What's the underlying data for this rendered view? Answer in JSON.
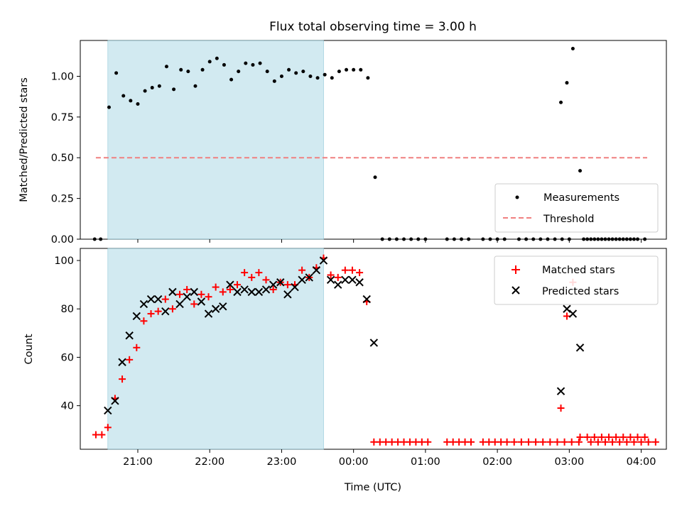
{
  "figure": {
    "title": "Flux total observing time = 3.00 h"
  },
  "chart_data": [
    {
      "type": "scatter",
      "ylabel": "Matched/Predicted stars",
      "xlabel": "",
      "x_is_time_hours": true,
      "xlim": [
        "20:12",
        "04:21"
      ],
      "ylim": [
        0,
        1.22
      ],
      "yticks": [
        0.0,
        0.25,
        0.5,
        0.75,
        1.0
      ],
      "ytick_labels": [
        "0.00",
        "0.25",
        "0.50",
        "0.75",
        "1.00"
      ],
      "shaded_span": [
        "20:35",
        "23:35"
      ],
      "shaded_color": "#add8e6",
      "legend": {
        "placement": "lower-right",
        "entries": [
          "Measurements",
          "Threshold"
        ]
      },
      "series": [
        {
          "name": "Measurements",
          "marker": "dot",
          "color": "#000000",
          "points": [
            [
              "20:24",
              0.0
            ],
            [
              "20:29",
              0.0
            ],
            [
              "20:36",
              0.81
            ],
            [
              "20:42",
              1.02
            ],
            [
              "20:48",
              0.88
            ],
            [
              "20:54",
              0.85
            ],
            [
              "21:00",
              0.83
            ],
            [
              "21:06",
              0.91
            ],
            [
              "21:12",
              0.93
            ],
            [
              "21:18",
              0.94
            ],
            [
              "21:24",
              1.06
            ],
            [
              "21:30",
              0.92
            ],
            [
              "21:36",
              1.04
            ],
            [
              "21:42",
              1.03
            ],
            [
              "21:48",
              0.94
            ],
            [
              "21:54",
              1.04
            ],
            [
              "22:00",
              1.09
            ],
            [
              "22:06",
              1.11
            ],
            [
              "22:12",
              1.07
            ],
            [
              "22:18",
              0.98
            ],
            [
              "22:24",
              1.03
            ],
            [
              "22:30",
              1.08
            ],
            [
              "22:36",
              1.07
            ],
            [
              "22:42",
              1.08
            ],
            [
              "22:48",
              1.03
            ],
            [
              "22:54",
              0.97
            ],
            [
              "23:00",
              1.0
            ],
            [
              "23:06",
              1.04
            ],
            [
              "23:12",
              1.02
            ],
            [
              "23:18",
              1.03
            ],
            [
              "23:24",
              1.0
            ],
            [
              "23:30",
              0.99
            ],
            [
              "23:36",
              1.01
            ],
            [
              "23:42",
              0.99
            ],
            [
              "23:48",
              1.03
            ],
            [
              "23:54",
              1.04
            ],
            [
              "00:00",
              1.04
            ],
            [
              "00:06",
              1.04
            ],
            [
              "00:12",
              0.99
            ],
            [
              "00:18",
              0.38
            ],
            [
              "00:24",
              0.0
            ],
            [
              "00:30",
              0.0
            ],
            [
              "00:36",
              0.0
            ],
            [
              "00:42",
              0.0
            ],
            [
              "00:48",
              0.0
            ],
            [
              "00:54",
              0.0
            ],
            [
              "01:00",
              0.0
            ],
            [
              "01:18",
              0.0
            ],
            [
              "01:24",
              0.0
            ],
            [
              "01:30",
              0.0
            ],
            [
              "01:36",
              0.0
            ],
            [
              "01:48",
              0.0
            ],
            [
              "01:54",
              0.0
            ],
            [
              "02:00",
              0.0
            ],
            [
              "02:06",
              0.0
            ],
            [
              "02:18",
              0.0
            ],
            [
              "02:24",
              0.0
            ],
            [
              "02:30",
              0.0
            ],
            [
              "02:36",
              0.0
            ],
            [
              "02:42",
              0.0
            ],
            [
              "02:48",
              0.0
            ],
            [
              "02:54",
              0.0
            ],
            [
              "03:00",
              0.0
            ],
            [
              "03:12",
              0.0
            ],
            [
              "03:18",
              0.0
            ],
            [
              "03:24",
              0.0
            ],
            [
              "03:30",
              0.0
            ],
            [
              "03:36",
              0.0
            ],
            [
              "03:42",
              0.0
            ],
            [
              "03:48",
              0.0
            ],
            [
              "03:54",
              0.0
            ],
            [
              "02:53",
              0.84
            ],
            [
              "02:58",
              0.96
            ],
            [
              "03:03",
              1.17
            ],
            [
              "03:09",
              0.42
            ],
            [
              "03:15",
              0.0
            ],
            [
              "03:21",
              0.0
            ],
            [
              "03:27",
              0.0
            ],
            [
              "03:33",
              0.0
            ],
            [
              "03:39",
              0.0
            ],
            [
              "03:45",
              0.0
            ],
            [
              "03:51",
              0.0
            ],
            [
              "03:57",
              0.0
            ],
            [
              "04:03",
              0.0
            ]
          ]
        },
        {
          "name": "Threshold",
          "line_style": "dashed",
          "color": "#f08080",
          "x": [
            "20:25",
            "04:05"
          ],
          "y": [
            0.5,
            0.5
          ]
        }
      ]
    },
    {
      "type": "scatter",
      "ylabel": "Count",
      "xlabel": "Time (UTC)",
      "xlim": [
        "20:12",
        "04:21"
      ],
      "xticks": [
        "21:00",
        "22:00",
        "23:00",
        "00:00",
        "01:00",
        "02:00",
        "03:00",
        "04:00"
      ],
      "ylim": [
        22,
        105
      ],
      "yticks": [
        40,
        60,
        80,
        100
      ],
      "ytick_labels": [
        "40",
        "60",
        "80",
        "100"
      ],
      "shaded_span": [
        "20:35",
        "23:35"
      ],
      "shaded_color": "#add8e6",
      "legend": {
        "placement": "top-right",
        "entries": [
          "Matched stars",
          "Predicted stars"
        ]
      },
      "series": [
        {
          "name": "Matched stars",
          "marker": "plus",
          "color": "#ff0000",
          "points": [
            [
              "20:25",
              28
            ],
            [
              "20:30",
              28
            ],
            [
              "20:35",
              31
            ],
            [
              "20:41",
              43
            ],
            [
              "20:47",
              51
            ],
            [
              "20:53",
              59
            ],
            [
              "20:59",
              64
            ],
            [
              "21:05",
              75
            ],
            [
              "21:11",
              78
            ],
            [
              "21:17",
              79
            ],
            [
              "21:23",
              84
            ],
            [
              "21:29",
              80
            ],
            [
              "21:35",
              86
            ],
            [
              "21:41",
              88
            ],
            [
              "21:47",
              82
            ],
            [
              "21:53",
              86
            ],
            [
              "21:59",
              85
            ],
            [
              "22:05",
              89
            ],
            [
              "22:11",
              87
            ],
            [
              "22:17",
              88
            ],
            [
              "22:23",
              90
            ],
            [
              "22:29",
              95
            ],
            [
              "22:35",
              93
            ],
            [
              "22:41",
              95
            ],
            [
              "22:47",
              92
            ],
            [
              "22:53",
              88
            ],
            [
              "22:59",
              91
            ],
            [
              "23:05",
              90
            ],
            [
              "23:11",
              90
            ],
            [
              "23:17",
              96
            ],
            [
              "23:23",
              93
            ],
            [
              "23:29",
              97
            ],
            [
              "23:35",
              101
            ],
            [
              "23:41",
              94
            ],
            [
              "23:47",
              93
            ],
            [
              "23:53",
              96
            ],
            [
              "23:59",
              96
            ],
            [
              "00:05",
              95
            ],
            [
              "00:11",
              83
            ],
            [
              "00:17",
              25
            ],
            [
              "00:22",
              25
            ],
            [
              "00:27",
              25
            ],
            [
              "00:32",
              25
            ],
            [
              "00:37",
              25
            ],
            [
              "00:42",
              25
            ],
            [
              "00:47",
              25
            ],
            [
              "00:52",
              25
            ],
            [
              "00:57",
              25
            ],
            [
              "01:02",
              25
            ],
            [
              "01:18",
              25
            ],
            [
              "01:23",
              25
            ],
            [
              "01:28",
              25
            ],
            [
              "01:33",
              25
            ],
            [
              "01:38",
              25
            ],
            [
              "01:48",
              25
            ],
            [
              "01:53",
              25
            ],
            [
              "01:58",
              25
            ],
            [
              "02:03",
              25
            ],
            [
              "02:08",
              25
            ],
            [
              "02:14",
              25
            ],
            [
              "02:20",
              25
            ],
            [
              "02:26",
              25
            ],
            [
              "02:32",
              25
            ],
            [
              "02:38",
              25
            ],
            [
              "02:44",
              25
            ],
            [
              "02:50",
              25
            ],
            [
              "02:56",
              25
            ],
            [
              "03:02",
              25
            ],
            [
              "03:08",
              25
            ],
            [
              "03:18",
              25
            ],
            [
              "03:24",
              25
            ],
            [
              "03:30",
              25
            ],
            [
              "03:36",
              25
            ],
            [
              "03:42",
              25
            ],
            [
              "03:48",
              25
            ],
            [
              "03:54",
              25
            ],
            [
              "04:00",
              25
            ],
            [
              "04:06",
              25
            ],
            [
              "04:12",
              25
            ],
            [
              "02:53",
              39
            ],
            [
              "02:58",
              77
            ],
            [
              "03:03",
              91
            ],
            [
              "03:09",
              27
            ],
            [
              "03:15",
              27
            ],
            [
              "03:21",
              27
            ],
            [
              "03:27",
              27
            ],
            [
              "03:33",
              27
            ],
            [
              "03:39",
              27
            ],
            [
              "03:45",
              27
            ],
            [
              "03:51",
              27
            ],
            [
              "03:57",
              27
            ],
            [
              "04:03",
              27
            ]
          ]
        },
        {
          "name": "Predicted stars",
          "marker": "x",
          "color": "#000000",
          "points": [
            [
              "20:35",
              38
            ],
            [
              "20:41",
              42
            ],
            [
              "20:47",
              58
            ],
            [
              "20:53",
              69
            ],
            [
              "20:59",
              77
            ],
            [
              "21:05",
              82
            ],
            [
              "21:11",
              84
            ],
            [
              "21:17",
              84
            ],
            [
              "21:23",
              79
            ],
            [
              "21:29",
              87
            ],
            [
              "21:35",
              82
            ],
            [
              "21:41",
              85
            ],
            [
              "21:47",
              87
            ],
            [
              "21:53",
              83
            ],
            [
              "21:59",
              78
            ],
            [
              "22:05",
              80
            ],
            [
              "22:11",
              81
            ],
            [
              "22:17",
              90
            ],
            [
              "22:23",
              87
            ],
            [
              "22:29",
              88
            ],
            [
              "22:35",
              87
            ],
            [
              "22:41",
              87
            ],
            [
              "22:47",
              88
            ],
            [
              "22:53",
              90
            ],
            [
              "22:59",
              91
            ],
            [
              "23:05",
              86
            ],
            [
              "23:11",
              89
            ],
            [
              "23:17",
              92
            ],
            [
              "23:23",
              93
            ],
            [
              "23:29",
              96
            ],
            [
              "23:35",
              100
            ],
            [
              "23:41",
              92
            ],
            [
              "23:47",
              90
            ],
            [
              "23:53",
              92
            ],
            [
              "23:59",
              92
            ],
            [
              "00:05",
              91
            ],
            [
              "00:11",
              84
            ],
            [
              "00:17",
              66
            ],
            [
              "02:53",
              46
            ],
            [
              "02:58",
              80
            ],
            [
              "03:03",
              78
            ],
            [
              "03:09",
              64
            ]
          ]
        }
      ]
    }
  ]
}
